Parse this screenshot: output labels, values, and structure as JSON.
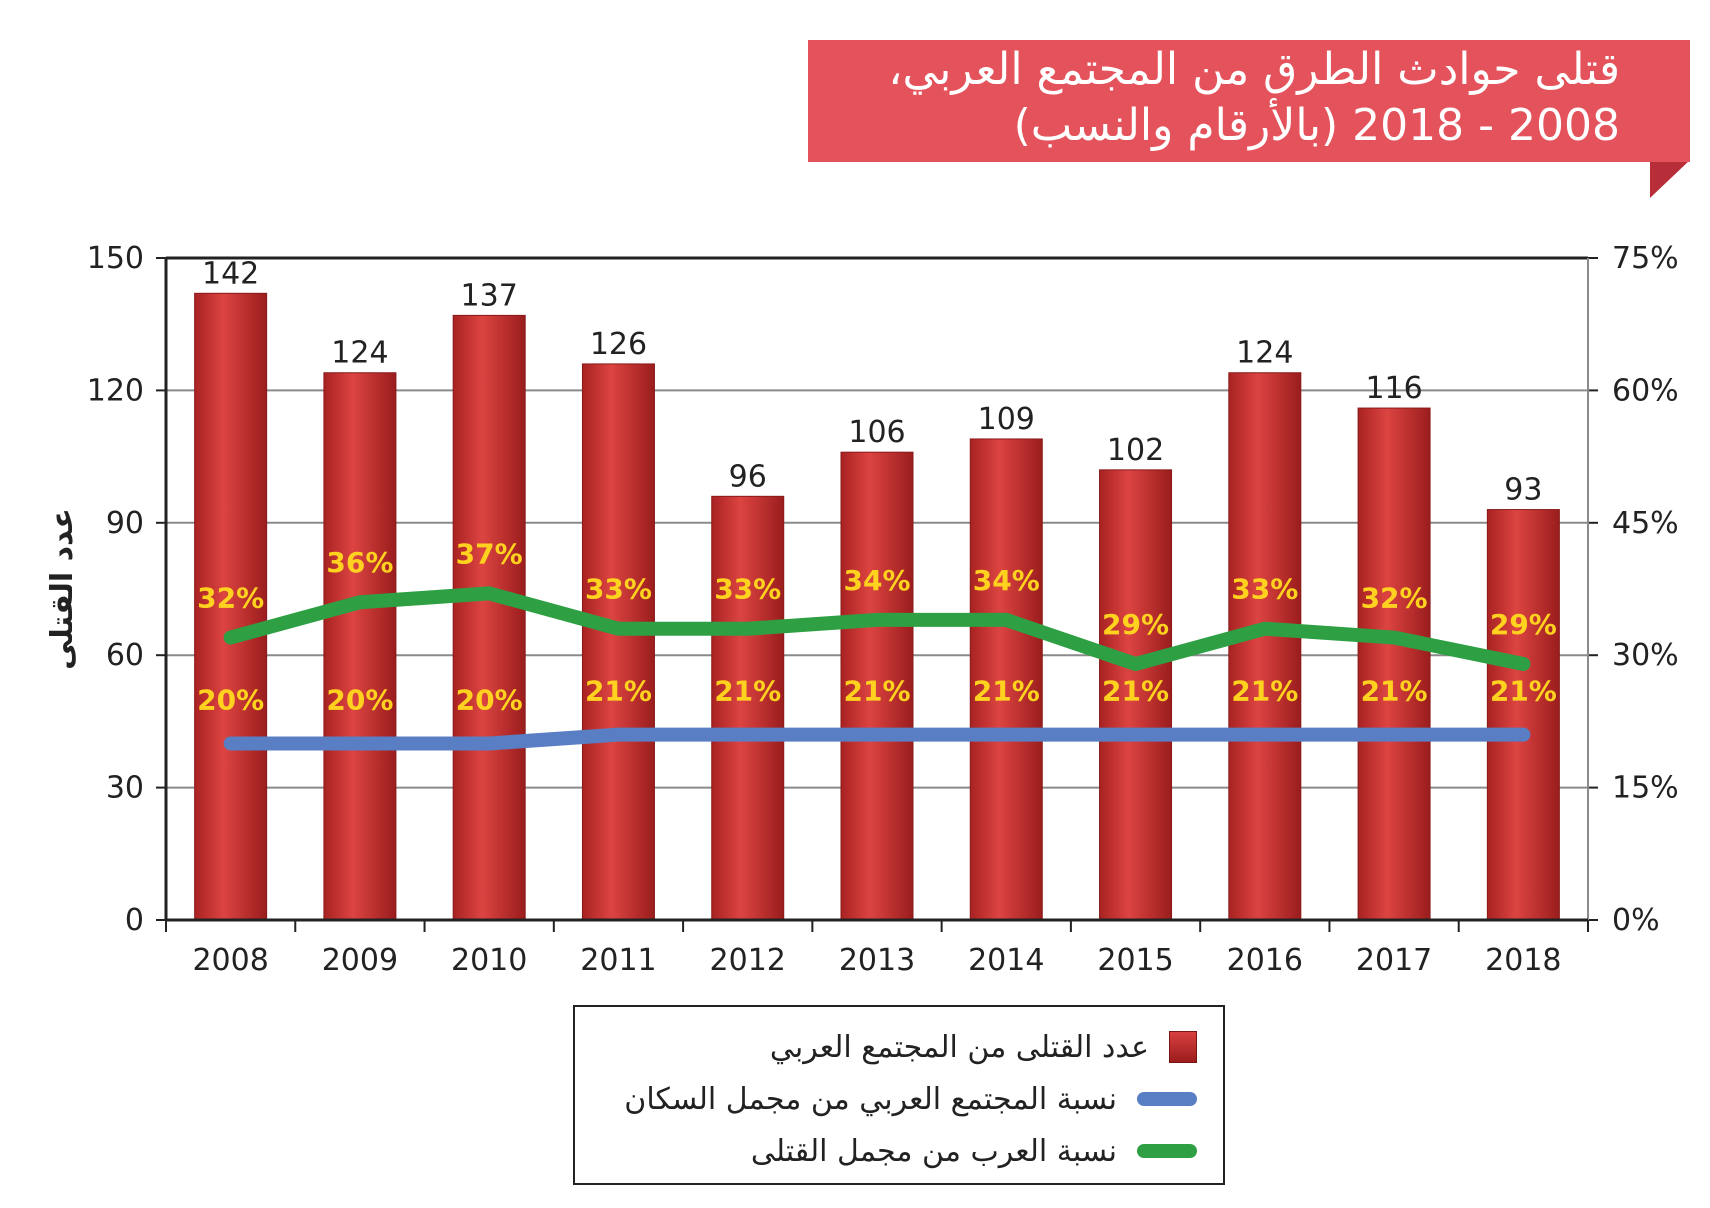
{
  "title": {
    "line1": "قتلى حوادث الطرق من المجتمع العربي،",
    "line2": "2008 - 2018 (بالأرقام والنسب)"
  },
  "colors": {
    "banner": "#e4525b",
    "bar": "#c8302f",
    "line_population": "#5a7ec3",
    "line_killed": "#2ea043",
    "pct_label": "#ffd21f"
  },
  "chart_data": {
    "type": "bar",
    "categories": [
      "2008",
      "2009",
      "2010",
      "2011",
      "2012",
      "2013",
      "2014",
      "2015",
      "2016",
      "2017",
      "2018"
    ],
    "series": [
      {
        "name": "عدد القتلى من المجتمع العربي",
        "type": "bar",
        "axis": "left",
        "values": [
          142,
          124,
          137,
          126,
          96,
          106,
          109,
          102,
          124,
          116,
          93
        ]
      },
      {
        "name": "نسبة المجتمع العربي من مجمل السكان",
        "type": "line",
        "axis": "right",
        "values": [
          20,
          20,
          20,
          21,
          21,
          21,
          21,
          21,
          21,
          21,
          21
        ]
      },
      {
        "name": "نسبة العرب من مجمل القتلى",
        "type": "line",
        "axis": "right",
        "values": [
          32,
          36,
          37,
          33,
          33,
          34,
          34,
          29,
          33,
          32,
          29
        ]
      }
    ],
    "ylabel": "عدد القتلى",
    "ylim": [
      0,
      150
    ],
    "yticks": [
      "0",
      "30",
      "60",
      "90",
      "120",
      "150"
    ],
    "y2lim": [
      0,
      75
    ],
    "y2ticks": [
      "0%",
      "15%",
      "30%",
      "45%",
      "60%",
      "75%"
    ],
    "grid": true,
    "legend_position": "bottom"
  }
}
